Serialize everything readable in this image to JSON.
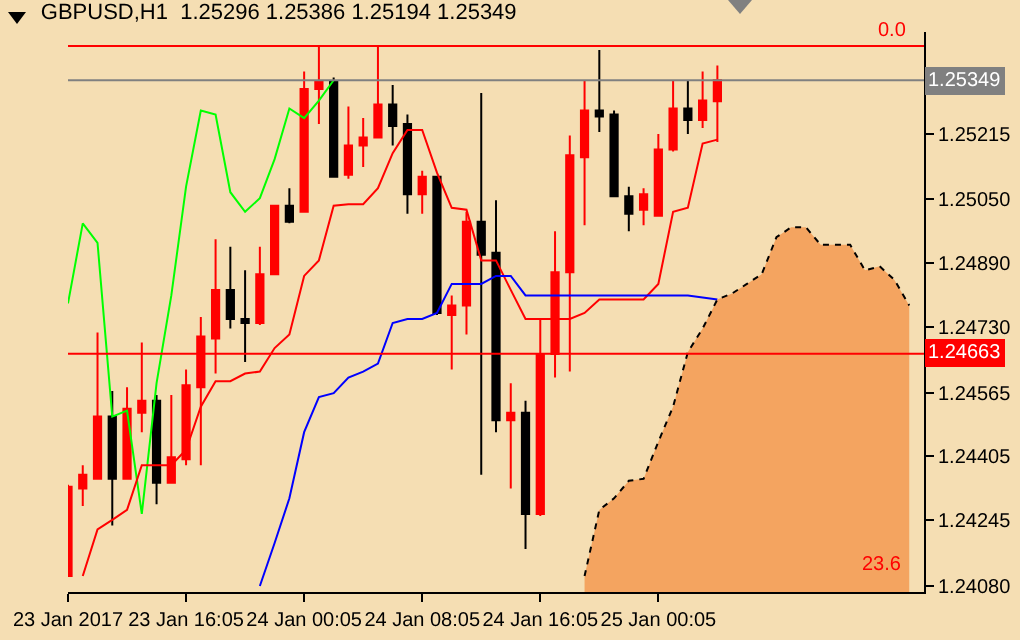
{
  "chart_data": {
    "type": "candlestick",
    "title": "GBPUSD,H1  1.25296 1.25386 1.25194 1.25349",
    "x": [
      "2017-01-23T08:05",
      "2017-01-23T09:05",
      "2017-01-23T10:05",
      "2017-01-23T11:05",
      "2017-01-23T12:05",
      "2017-01-23T13:05",
      "2017-01-23T14:05",
      "2017-01-23T15:05",
      "2017-01-23T16:05",
      "2017-01-23T17:05",
      "2017-01-23T18:05",
      "2017-01-23T19:05",
      "2017-01-23T20:05",
      "2017-01-23T21:05",
      "2017-01-23T22:05",
      "2017-01-23T23:05",
      "2017-01-24T00:05",
      "2017-01-24T01:05",
      "2017-01-24T02:05",
      "2017-01-24T03:05",
      "2017-01-24T04:05",
      "2017-01-24T05:05",
      "2017-01-24T06:05",
      "2017-01-24T07:05",
      "2017-01-24T08:05",
      "2017-01-24T09:05",
      "2017-01-24T10:05",
      "2017-01-24T11:05",
      "2017-01-24T12:05",
      "2017-01-24T13:05",
      "2017-01-24T14:05",
      "2017-01-24T15:05",
      "2017-01-24T16:05",
      "2017-01-24T17:05",
      "2017-01-24T18:05",
      "2017-01-24T19:05",
      "2017-01-24T20:05",
      "2017-01-24T21:05",
      "2017-01-24T22:05",
      "2017-01-24T23:05",
      "2017-01-25T00:05",
      "2017-01-25T01:05",
      "2017-01-25T02:05",
      "2017-01-25T03:05",
      "2017-01-25T04:05"
    ],
    "ohlc": [
      [
        1.24105,
        1.24334,
        1.24105,
        1.24329
      ],
      [
        1.24325,
        1.24383,
        1.24281,
        1.24359
      ],
      [
        1.24349,
        1.24716,
        1.24349,
        1.24505
      ],
      [
        1.24505,
        1.24569,
        1.24232,
        1.24349
      ],
      [
        1.24349,
        1.24579,
        1.24349,
        1.24525
      ],
      [
        1.24515,
        1.24691,
        1.24466,
        1.24545
      ],
      [
        1.24545,
        1.24559,
        1.24285,
        1.24339
      ],
      [
        1.24339,
        1.24559,
        1.24339,
        1.24403
      ],
      [
        1.24398,
        1.24623,
        1.24383,
        1.24584
      ],
      [
        1.24579,
        1.24755,
        1.24383,
        1.24706
      ],
      [
        1.24701,
        1.2495,
        1.24613,
        1.24823
      ],
      [
        1.24823,
        1.24931,
        1.24726,
        1.2475
      ],
      [
        1.2475,
        1.24872,
        1.24642,
        1.2474
      ],
      [
        1.2474,
        1.24931,
        1.24735,
        1.24862
      ],
      [
        1.24862,
        1.25034,
        1.24862,
        1.25034
      ],
      [
        1.25034,
        1.25078,
        1.2499,
        1.24994
      ],
      [
        1.25019,
        1.25371,
        1.25019,
        1.25327
      ],
      [
        1.25327,
        1.25435,
        1.25239,
        1.25347
      ],
      [
        1.25347,
        1.25356,
        1.25107,
        1.25107
      ],
      [
        1.25112,
        1.25283,
        1.25102,
        1.25185
      ],
      [
        1.25185,
        1.25254,
        1.25131,
        1.25205
      ],
      [
        1.25205,
        1.25435,
        1.25205,
        1.25288
      ],
      [
        1.25288,
        1.25337,
        1.25185,
        1.25234
      ],
      [
        1.25239,
        1.25263,
        1.25014,
        1.25063
      ],
      [
        1.25063,
        1.25122,
        1.25014,
        1.25107
      ],
      [
        1.25107,
        1.25107,
        1.2476,
        1.24765
      ],
      [
        1.2476,
        1.24809,
        1.24623,
        1.24784
      ],
      [
        1.24784,
        1.25019,
        1.24711,
        1.24994
      ],
      [
        1.24994,
        1.25317,
        1.24359,
        1.24911
      ],
      [
        1.24916,
        1.25048,
        1.24466,
        1.24496
      ],
      [
        1.24496,
        1.24589,
        1.24325,
        1.24515
      ],
      [
        1.24515,
        1.24545,
        1.24173,
        1.24261
      ],
      [
        1.24261,
        1.2475,
        1.24256,
        1.24662
      ],
      [
        1.24662,
        1.2497,
        1.24603,
        1.24867
      ],
      [
        1.24867,
        1.2521,
        1.24618,
        1.25161
      ],
      [
        1.25156,
        1.25347,
        1.24985,
        1.25273
      ],
      [
        1.25273,
        1.25425,
        1.25219,
        1.25258
      ],
      [
        1.25263,
        1.25273,
        1.25058,
        1.25058
      ],
      [
        1.25058,
        1.25082,
        1.2497,
        1.25014
      ],
      [
        1.25024,
        1.25078,
        1.24985,
        1.25063
      ],
      [
        1.25009,
        1.25214,
        1.25009,
        1.25175
      ],
      [
        1.25175,
        1.25347,
        1.2517,
        1.25278
      ],
      [
        1.25278,
        1.25347,
        1.25214,
        1.25249
      ],
      [
        1.25249,
        1.25371,
        1.25229,
        1.25298
      ],
      [
        1.25296,
        1.25386,
        1.25194,
        1.25349
      ]
    ],
    "colors": [
      "#ff0000",
      "#ff0000",
      "#ff0000",
      "#000000",
      "#ff0000",
      "#ff0000",
      "#000000",
      "#ff0000",
      "#ff0000",
      "#ff0000",
      "#ff0000",
      "#000000",
      "#000000",
      "#ff0000",
      "#ff0000",
      "#000000",
      "#ff0000",
      "#ff0000",
      "#000000",
      "#ff0000",
      "#ff0000",
      "#ff0000",
      "#000000",
      "#000000",
      "#ff0000",
      "#000000",
      "#ff0000",
      "#ff0000",
      "#000000",
      "#000000",
      "#ff0000",
      "#000000",
      "#ff0000",
      "#ff0000",
      "#ff0000",
      "#ff0000",
      "#000000",
      "#000000",
      "#000000",
      "#ff0000",
      "#ff0000",
      "#ff0000",
      "#000000",
      "#ff0000",
      "#ff0000"
    ],
    "series": [
      {
        "type": "line",
        "color": "#00ff00",
        "x": [
          "2017-01-23T08:05",
          "2017-01-23T09:05",
          "2017-01-23T10:05",
          "2017-01-23T11:05",
          "2017-01-23T12:05",
          "2017-01-23T13:05",
          "2017-01-23T14:05",
          "2017-01-23T15:05",
          "2017-01-23T16:05",
          "2017-01-23T17:05",
          "2017-01-23T18:05",
          "2017-01-23T19:05",
          "2017-01-23T20:05",
          "2017-01-23T21:05",
          "2017-01-23T22:05",
          "2017-01-23T23:05",
          "2017-01-24T00:05",
          "2017-01-24T01:05",
          "2017-01-24T02:05"
        ],
        "values": [
          1.24789,
          1.2499,
          1.24941,
          1.24505,
          1.2452,
          1.24261,
          1.24589,
          1.24809,
          1.25082,
          1.25273,
          1.25263,
          1.25068,
          1.25019,
          1.25053,
          1.25151,
          1.25278,
          1.25254,
          1.25298,
          1.25349
        ]
      },
      {
        "type": "line",
        "color": "#ff0000",
        "x": [
          "2017-01-23T09:05",
          "2017-01-23T10:05",
          "2017-01-23T11:05",
          "2017-01-23T12:05",
          "2017-01-23T13:05",
          "2017-01-23T14:05",
          "2017-01-23T15:05",
          "2017-01-23T16:05",
          "2017-01-23T17:05",
          "2017-01-23T18:05",
          "2017-01-23T19:05",
          "2017-01-23T20:05",
          "2017-01-23T21:05",
          "2017-01-23T22:05",
          "2017-01-23T23:05",
          "2017-01-24T00:05",
          "2017-01-24T01:05",
          "2017-01-24T02:05",
          "2017-01-24T03:05",
          "2017-01-24T04:05",
          "2017-01-24T05:05",
          "2017-01-24T06:05",
          "2017-01-24T07:05",
          "2017-01-24T08:05",
          "2017-01-24T09:05",
          "2017-01-24T10:05",
          "2017-01-24T11:05",
          "2017-01-24T12:05",
          "2017-01-24T13:05",
          "2017-01-24T14:05",
          "2017-01-24T15:05",
          "2017-01-24T16:05",
          "2017-01-24T17:05",
          "2017-01-24T18:05",
          "2017-01-24T19:05",
          "2017-01-24T20:05",
          "2017-01-24T21:05",
          "2017-01-24T22:05",
          "2017-01-24T23:05",
          "2017-01-25T00:05",
          "2017-01-25T01:05",
          "2017-01-25T02:05",
          "2017-01-25T03:05",
          "2017-01-25T04:05"
        ],
        "values": [
          1.24105,
          1.24222,
          1.24246,
          1.24271,
          1.24383,
          1.24383,
          1.24383,
          1.24422,
          1.2453,
          1.24594,
          1.24594,
          1.24613,
          1.24618,
          1.24677,
          1.24711,
          1.24858,
          1.24897,
          1.25034,
          1.25038,
          1.25038,
          1.25078,
          1.25166,
          1.25224,
          1.25224,
          1.25117,
          1.25029,
          1.25024,
          1.24897,
          1.24897,
          1.24823,
          1.2475,
          1.2475,
          1.2475,
          1.2475,
          1.24765,
          1.24799,
          1.24799,
          1.24799,
          1.24799,
          1.24838,
          1.25019,
          1.25029,
          1.2519,
          1.252
        ]
      },
      {
        "type": "line",
        "color": "#0000ff",
        "x": [
          "2017-01-23T21:05",
          "2017-01-23T22:05",
          "2017-01-23T23:05",
          "2017-01-24T00:05",
          "2017-01-24T01:05",
          "2017-01-24T02:05",
          "2017-01-24T03:05",
          "2017-01-24T04:05",
          "2017-01-24T05:05",
          "2017-01-24T06:05",
          "2017-01-24T07:05",
          "2017-01-24T08:05",
          "2017-01-24T09:05",
          "2017-01-24T10:05",
          "2017-01-24T11:05",
          "2017-01-24T12:05",
          "2017-01-24T13:05",
          "2017-01-24T14:05",
          "2017-01-24T15:05",
          "2017-01-24T16:05",
          "2017-01-24T17:05",
          "2017-01-24T18:05",
          "2017-01-24T19:05",
          "2017-01-24T20:05",
          "2017-01-24T21:05",
          "2017-01-24T22:05",
          "2017-01-24T23:05",
          "2017-01-25T00:05",
          "2017-01-25T01:05",
          "2017-01-25T02:05",
          "2017-01-25T03:05",
          "2017-01-25T04:05"
        ],
        "values": [
          1.2408,
          1.24188,
          1.243,
          1.24466,
          1.24554,
          1.24564,
          1.24603,
          1.24618,
          1.24638,
          1.2474,
          1.2475,
          1.2475,
          1.24765,
          1.24838,
          1.24838,
          1.24838,
          1.24858,
          1.24858,
          1.24809,
          1.24809,
          1.24809,
          1.24809,
          1.24809,
          1.24809,
          1.24809,
          1.24809,
          1.24809,
          1.24809,
          1.24809,
          1.24809,
          1.24804,
          1.24799
        ]
      },
      {
        "type": "area",
        "color": "#f4a460",
        "line_style": "dotted",
        "x": [
          "2017-01-24T19:05",
          "2017-01-24T20:05",
          "2017-01-24T21:05",
          "2017-01-24T22:05",
          "2017-01-24T23:05",
          "2017-01-25T00:05",
          "2017-01-25T01:05",
          "2017-01-25T02:05",
          "2017-01-25T03:05",
          "2017-01-25T04:05",
          "2017-01-25T05:05",
          "2017-01-25T06:05",
          "2017-01-25T07:05",
          "2017-01-25T08:05",
          "2017-01-25T09:05",
          "2017-01-25T10:05",
          "2017-01-25T11:05",
          "2017-01-25T12:05",
          "2017-01-25T13:05",
          "2017-01-25T14:05",
          "2017-01-25T15:05",
          "2017-01-25T16:05",
          "2017-01-25T17:05"
        ],
        "values": [
          1.24105,
          1.24271,
          1.243,
          1.24344,
          1.24349,
          1.24442,
          1.2453,
          1.24667,
          1.24726,
          1.24799,
          1.24814,
          1.24838,
          1.24862,
          1.24955,
          1.2498,
          1.2498,
          1.24936,
          1.24936,
          1.24936,
          1.24872,
          1.24882,
          1.24848,
          1.24784
        ]
      }
    ],
    "xlim": [
      "2017-01-23T08:05",
      "2017-01-25T18:05"
    ],
    "xticks": [
      {
        "value": "2017-01-23T08:05",
        "label": "23 Jan 2017"
      },
      {
        "value": "2017-01-23T16:05",
        "label": "23 Jan 16:05"
      },
      {
        "value": "2017-01-24T00:05",
        "label": "24 Jan 00:05"
      },
      {
        "value": "2017-01-24T08:05",
        "label": "24 Jan 08:05"
      },
      {
        "value": "2017-01-24T16:05",
        "label": "24 Jan 16:05"
      },
      {
        "value": "2017-01-25T00:05",
        "label": "25 Jan 00:05"
      }
    ],
    "ylim": [
      1.24065,
      1.2547
    ],
    "yticks": [
      {
        "value": 1.2408,
        "label": "1.24080"
      },
      1.24245,
      1.24405,
      1.24565,
      {
        "value": 1.2473,
        "label": "1.24730"
      },
      {
        "value": 1.2489,
        "label": "1.24890"
      },
      {
        "value": 1.2505,
        "label": "1.25050"
      },
      1.25215,
      {
        "value": 1.25375,
        "label": null
      }
    ],
    "ref_lines": [
      {
        "axis": "y",
        "value": 1.25435,
        "color": "#ff0000"
      },
      {
        "axis": "y",
        "value": 1.25349,
        "label": "1.25349",
        "color": "#808080"
      },
      {
        "axis": "y",
        "value": 1.24663,
        "label": "1.24663",
        "color": "#ff0000"
      }
    ],
    "annotations": [
      {
        "text": "0.0",
        "x": "2017-01-25T17:05",
        "y": 1.25435
      },
      "23.6"
    ],
    "grid": false,
    "marker": "none"
  }
}
